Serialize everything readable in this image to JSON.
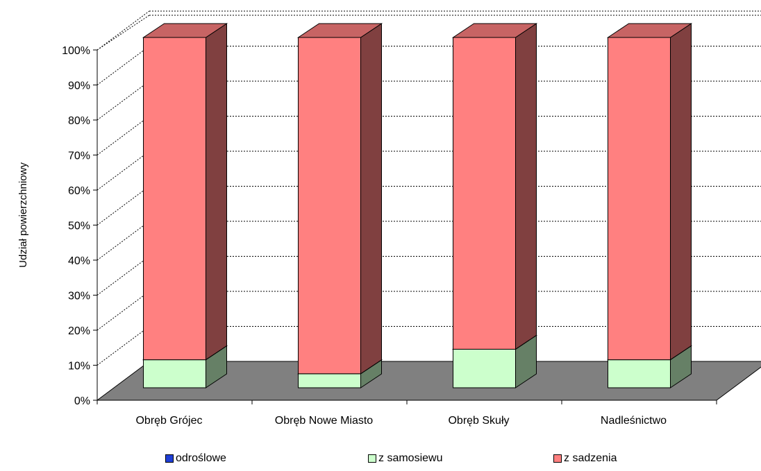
{
  "chart_data": {
    "type": "bar",
    "stacked": true,
    "three_d": true,
    "categories": [
      "Obręb Grójec",
      "Obręb Nowe Miasto",
      "Obręb Skuły",
      "Nadleśnictwo"
    ],
    "series": [
      {
        "name": "odroślowe",
        "values": [
          0,
          0,
          0,
          0
        ],
        "color": "#1f3fd6"
      },
      {
        "name": "z samosiewu",
        "values": [
          8,
          4,
          11,
          8
        ],
        "color": "#ccffcc"
      },
      {
        "name": "z sadzenia",
        "values": [
          92,
          96,
          89,
          92
        ],
        "color": "#ff8080"
      }
    ],
    "ylabel": "Udział powierzchniowy",
    "xlabel": "",
    "title": "",
    "ylim": [
      0,
      100
    ],
    "yticks": [
      "0%",
      "10%",
      "20%",
      "30%",
      "40%",
      "50%",
      "60%",
      "70%",
      "80%",
      "90%",
      "100%"
    ],
    "grid": "horizontal-dotted",
    "legend_position": "bottom",
    "floor_color": "#808080"
  }
}
